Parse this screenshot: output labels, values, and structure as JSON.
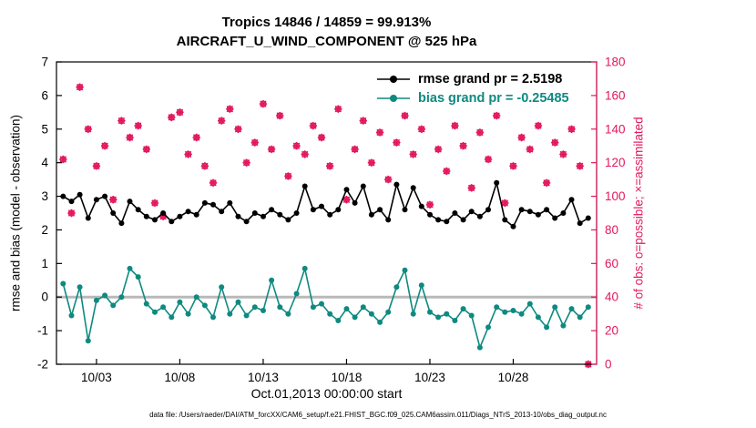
{
  "footer": "data file: /Users/raeder/DAI/ATM_forcXX/CAM6_setup/f.e21.FHIST_BGC.f09_025.CAM6assim.011/Diags_NTrS_2013-10/obs_diag_output.nc",
  "chart_data": {
    "type": "line",
    "title": "Tropics 14846 / 14859 = 99.913%",
    "subtitle": "AIRCRAFT_U_WIND_COMPONENT @ 525 hPa",
    "xlabel": "Oct.01,2013 00:00:00 start",
    "ylabel_left": "rmse and bias (model - observation)",
    "ylabel_right": "# of obs: o=possible; ×=assimilated",
    "xlim": [
      0.6,
      33.0
    ],
    "ylim_left": [
      -2,
      7
    ],
    "ylim_right": [
      0,
      180
    ],
    "grid": false,
    "legend_position": "top-right",
    "xticks": [
      {
        "v": 3,
        "label": "10/03"
      },
      {
        "v": 8,
        "label": "10/08"
      },
      {
        "v": 13,
        "label": "10/13"
      },
      {
        "v": 18,
        "label": "10/18"
      },
      {
        "v": 23,
        "label": "10/23"
      },
      {
        "v": 28,
        "label": "10/28"
      }
    ],
    "yticks_left": [
      -2,
      -1,
      0,
      1,
      2,
      3,
      4,
      5,
      6,
      7
    ],
    "yticks_right": [
      0,
      20,
      40,
      60,
      80,
      100,
      120,
      140,
      160,
      180
    ],
    "x_start": 1.0,
    "x_step": 0.5,
    "series": [
      {
        "name": "rmse",
        "legend": "rmse grand pr = 2.5198",
        "grand_mean": 2.5198,
        "color": "#000000",
        "values": [
          3.0,
          2.85,
          3.05,
          2.35,
          2.9,
          3.0,
          2.5,
          2.2,
          2.85,
          2.6,
          2.4,
          2.3,
          2.5,
          2.25,
          2.4,
          2.55,
          2.45,
          2.8,
          2.75,
          2.55,
          2.8,
          2.4,
          2.25,
          2.5,
          2.4,
          2.6,
          2.45,
          2.3,
          2.5,
          3.3,
          2.6,
          2.7,
          2.45,
          2.6,
          3.2,
          2.8,
          3.3,
          2.45,
          2.6,
          2.3,
          3.35,
          2.6,
          3.25,
          2.7,
          2.45,
          2.3,
          2.25,
          2.5,
          2.3,
          2.55,
          2.4,
          2.6,
          3.4,
          2.3,
          2.1,
          2.6,
          2.55,
          2.45,
          2.6,
          2.35,
          2.5,
          2.9,
          2.2,
          2.35
        ]
      },
      {
        "name": "bias",
        "legend": "bias grand pr = -0.25485",
        "grand_mean": -0.25485,
        "color": "#0e8a80",
        "values": [
          0.4,
          -0.55,
          0.3,
          -1.3,
          -0.1,
          0.05,
          -0.25,
          0.0,
          0.85,
          0.6,
          -0.2,
          -0.45,
          -0.3,
          -0.6,
          -0.15,
          -0.5,
          0.0,
          -0.25,
          -0.6,
          0.3,
          -0.5,
          -0.15,
          -0.55,
          -0.3,
          -0.4,
          0.5,
          -0.3,
          -0.5,
          0.1,
          0.85,
          -0.3,
          -0.2,
          -0.5,
          -0.7,
          -0.35,
          -0.6,
          -0.3,
          -0.5,
          -0.75,
          -0.45,
          0.3,
          0.8,
          -0.5,
          0.35,
          -0.45,
          -0.6,
          -0.5,
          -0.7,
          -0.35,
          -0.55,
          -1.5,
          -0.9,
          -0.3,
          -0.45,
          -0.4,
          -0.5,
          -0.2,
          -0.6,
          -0.9,
          -0.3,
          -0.85,
          -0.35,
          -0.6,
          -0.3
        ]
      }
    ],
    "obs_series": {
      "name": "num-obs",
      "color": "#e3185c",
      "values": [
        122,
        90,
        165,
        140,
        118,
        130,
        98,
        145,
        135,
        142,
        128,
        96,
        88,
        147,
        150,
        125,
        135,
        118,
        108,
        145,
        152,
        140,
        120,
        132,
        155,
        128,
        148,
        112,
        130,
        125,
        142,
        135,
        118,
        152,
        98,
        128,
        145,
        120,
        138,
        110,
        132,
        148,
        125,
        140,
        95,
        128,
        115,
        142,
        130,
        105,
        138,
        122,
        148,
        96,
        118,
        135,
        128,
        142,
        108,
        132,
        125,
        140,
        118,
        0
      ]
    },
    "colors": {
      "zero_line": "#b9b9b9",
      "axis": "#000000",
      "right_axis": "#e3185c"
    }
  }
}
